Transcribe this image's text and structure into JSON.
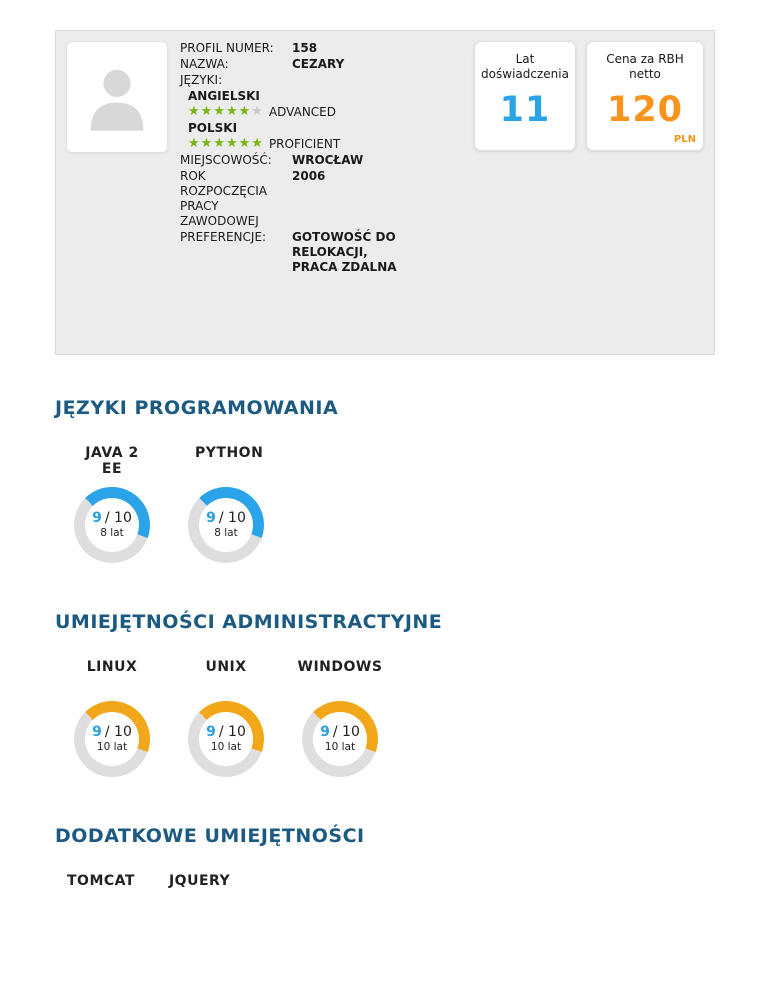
{
  "theme": {
    "heading_color": "#1b5a82",
    "star_color": "#76b510",
    "rating_color": "#2aa0e4",
    "card_background": "#ececec"
  },
  "profile": {
    "profil_label": "PROFIL NUMER:",
    "profil_value": "158",
    "nazwa_label": "NAZWA:",
    "nazwa_value": "CEZARY",
    "jezyki_label": "JĘZYKI:",
    "languages": [
      {
        "name": "ANGIELSKI",
        "stars": 5,
        "max_stars": 6,
        "level": "ADVANCED"
      },
      {
        "name": "POLSKI",
        "stars": 6,
        "max_stars": 6,
        "level": "PROFICIENT"
      }
    ],
    "miejscowosc_label": "MIEJSCOWOŚĆ:",
    "miejscowosc_value": "WROCŁAW",
    "rok_label": "ROK ROZPOCZĘCIA PRACY ZAWODOWEJ",
    "rok_value": "2006",
    "preferencje_label": "PREFERENCJE:",
    "preferencje_value": "GOTOWOŚĆ DO RELOKACJI, PRACA ZDALNA",
    "stats": [
      {
        "label": "Lat doświadczenia",
        "value": "11",
        "color": "#2aa3e8"
      },
      {
        "label": "Cena za RBH netto",
        "value": "120",
        "unit": "PLN",
        "color": "#f7941d"
      }
    ]
  },
  "sections": [
    {
      "title": "JĘZYKI PROGRAMOWANIA",
      "skills": [
        {
          "name": "JAVA 2 EE",
          "rating": "9",
          "denominator": "/ 10",
          "years": "8 lat",
          "color": "#2aa3e8"
        },
        {
          "name": "PYTHON",
          "rating": "9",
          "denominator": "/ 10",
          "years": "8 lat",
          "color": "#2aa3e8"
        }
      ]
    },
    {
      "title": "UMIEJĘTNOŚCI ADMINISTRACTYJNE",
      "skills": [
        {
          "name": "LINUX",
          "rating": "9",
          "denominator": "/ 10",
          "years": "10 lat",
          "color": "#f2a71b"
        },
        {
          "name": "UNIX",
          "rating": "9",
          "denominator": "/ 10",
          "years": "10 lat",
          "color": "#f2a71b"
        },
        {
          "name": "WINDOWS",
          "rating": "9",
          "denominator": "/ 10",
          "years": "10 lat",
          "color": "#f2a71b"
        }
      ]
    },
    {
      "title": "DODATKOWE UMIEJĘTNOŚCI",
      "skills": [
        {
          "name": "TOMCAT"
        },
        {
          "name": "JQUERY"
        }
      ]
    }
  ]
}
